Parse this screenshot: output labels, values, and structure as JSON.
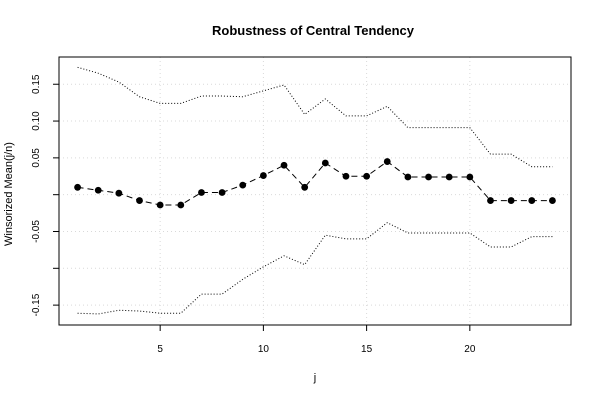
{
  "chart_data": {
    "type": "line",
    "title": "Robustness of Central Tendency",
    "xlabel": "j",
    "ylabel": "Winsorized Mean(j/n)",
    "xlim": [
      0.1,
      24.9
    ],
    "ylim": [
      -0.177,
      0.187
    ],
    "xticks": [
      5,
      10,
      15,
      20
    ],
    "yticks": [
      -0.15,
      -0.1,
      -0.05,
      0.0,
      0.05,
      0.1,
      0.15
    ],
    "ytick_labels": [
      "-0.15",
      "",
      "-0.05",
      "",
      "0.05",
      "0.10",
      "0.15"
    ],
    "grid": true,
    "x": [
      1,
      2,
      3,
      4,
      5,
      6,
      7,
      8,
      9,
      10,
      11,
      12,
      13,
      14,
      15,
      16,
      17,
      18,
      19,
      20,
      21,
      22,
      23,
      24
    ],
    "series": [
      {
        "role": "mean",
        "style": "points-dashed",
        "values": [
          0.01,
          0.006,
          0.002,
          -0.008,
          -0.014,
          -0.014,
          0.003,
          0.003,
          0.013,
          0.026,
          0.04,
          0.01,
          0.043,
          0.025,
          0.025,
          0.045,
          0.024,
          0.024,
          0.024,
          0.024,
          -0.008,
          -0.008,
          -0.008,
          -0.008
        ]
      },
      {
        "role": "upper",
        "style": "dotted",
        "values": [
          0.173,
          0.165,
          0.153,
          0.133,
          0.124,
          0.124,
          0.134,
          0.134,
          0.133,
          0.141,
          0.149,
          0.109,
          0.13,
          0.107,
          0.107,
          0.12,
          0.091,
          0.091,
          0.091,
          0.091,
          0.055,
          0.055,
          0.038,
          0.038
        ]
      },
      {
        "role": "lower",
        "style": "dotted",
        "values": [
          -0.161,
          -0.162,
          -0.157,
          -0.158,
          -0.161,
          -0.161,
          -0.135,
          -0.135,
          -0.115,
          -0.098,
          -0.083,
          -0.095,
          -0.055,
          -0.06,
          -0.06,
          -0.038,
          -0.052,
          -0.052,
          -0.052,
          -0.052,
          -0.071,
          -0.071,
          -0.057,
          -0.057
        ]
      }
    ]
  }
}
